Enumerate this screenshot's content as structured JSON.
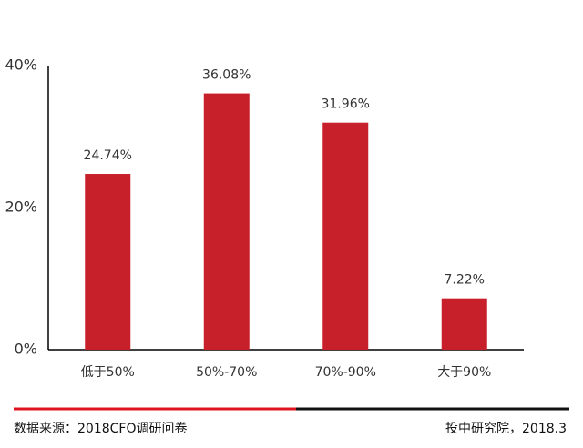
{
  "chart_data": {
    "type": "bar",
    "categories": [
      "低于50%",
      "50%-70%",
      "70%-90%",
      "大于90%"
    ],
    "values": [
      24.74,
      36.08,
      31.96,
      7.22
    ],
    "value_labels": [
      "24.74%",
      "36.08%",
      "31.96%",
      "7.22%"
    ],
    "color": "#c8202a",
    "ylim": [
      0,
      40
    ],
    "yticks": [
      {
        "value": 0,
        "label": "0%"
      },
      {
        "value": 20,
        "label": "20%"
      },
      {
        "value": 40,
        "label": "40%"
      }
    ],
    "grid": false
  },
  "footer": {
    "source": "数据来源：2018CFO调研问卷",
    "publisher": "投中研究院，2018.3"
  }
}
